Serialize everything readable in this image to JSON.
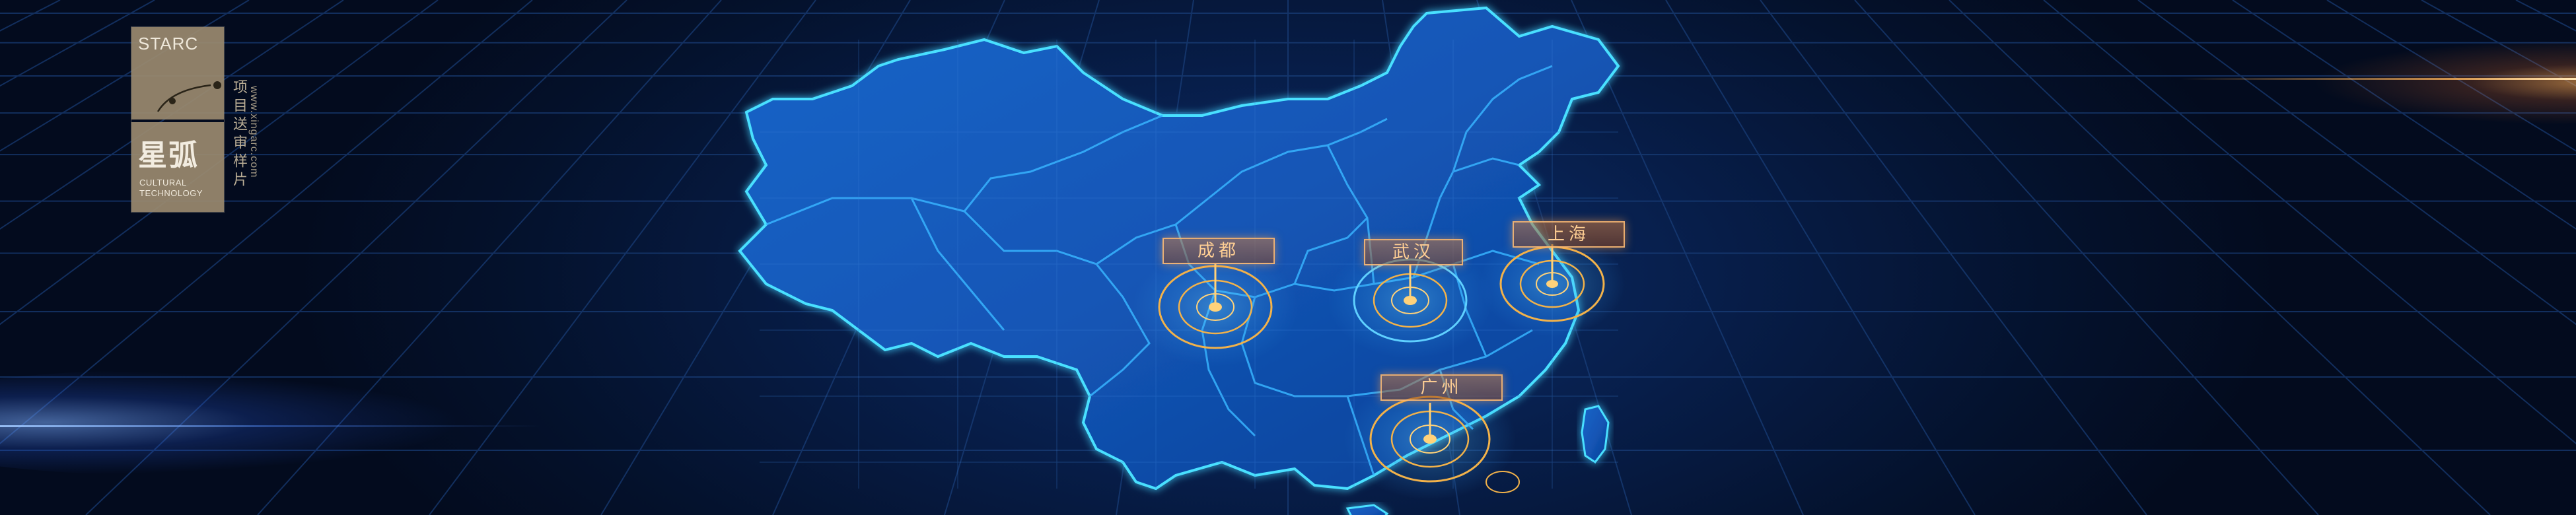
{
  "logo": {
    "english": "STARC",
    "chinese": "星弧",
    "sub_line1": "CULTURAL",
    "sub_line2": "TECHNOLOGY",
    "vertical_title": "项目送审样片",
    "vertical_url": "www.xingarc.com"
  },
  "cities": [
    {
      "id": "west",
      "label": "成都"
    },
    {
      "id": "center",
      "label": "武汉"
    },
    {
      "id": "east",
      "label": "上海"
    },
    {
      "id": "south",
      "label": "广州"
    }
  ],
  "colors": {
    "map_fill": "#1356b6",
    "map_edge": "#3ed2ff",
    "province_line": "#2fa9ff",
    "marker_gold": "#f2b24a",
    "label_text": "#ffcf94",
    "grid_line": "#1a3f7a"
  }
}
